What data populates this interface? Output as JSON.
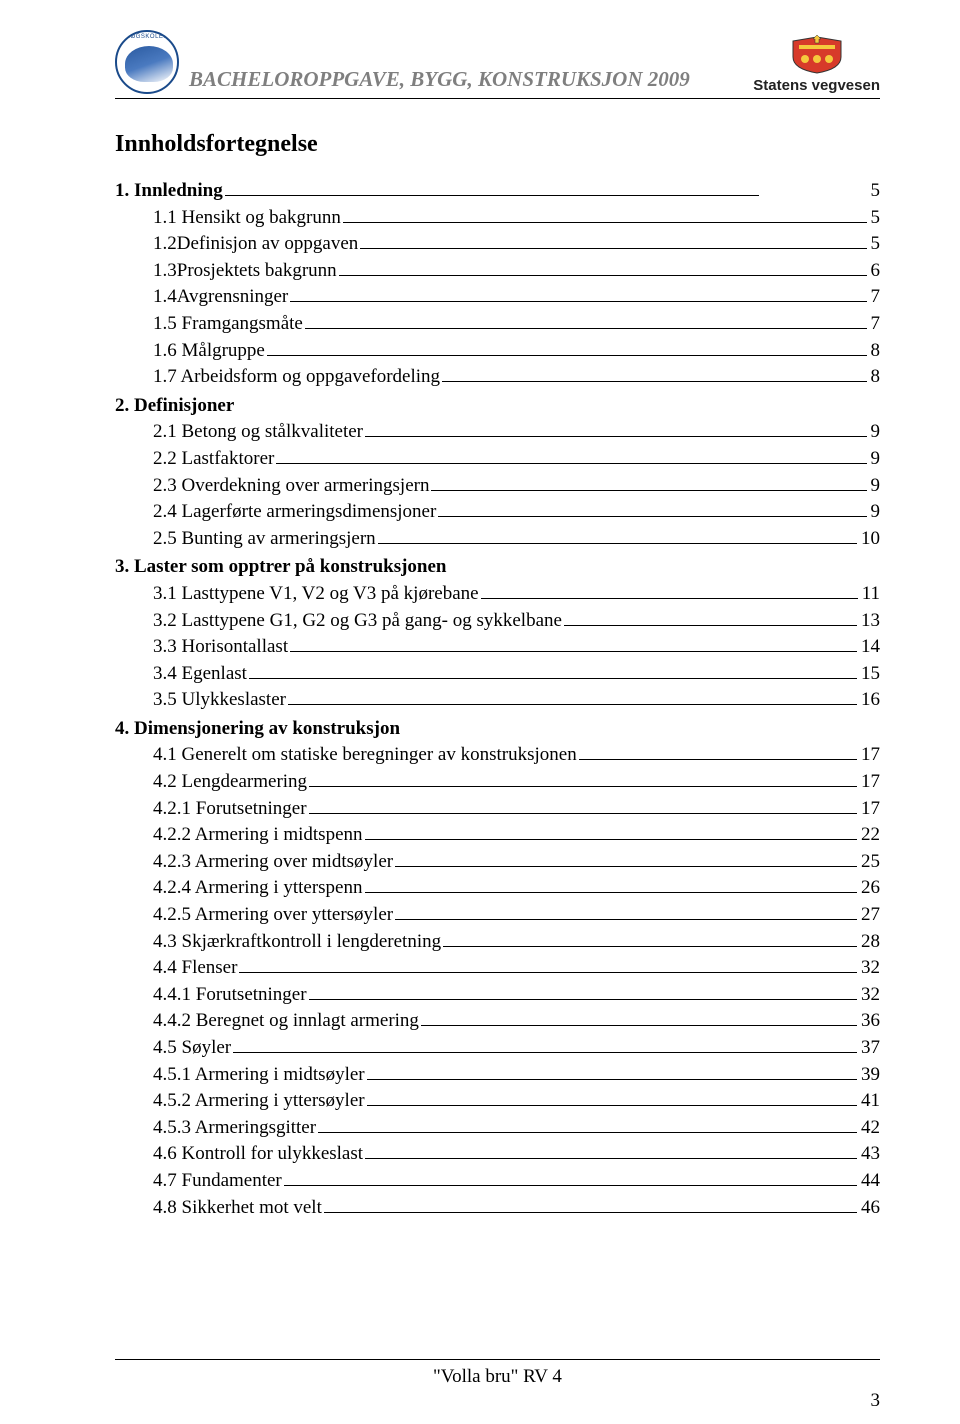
{
  "header": {
    "title": "BACHELOROPPGAVE, BYGG, KONSTRUKSJON 2009",
    "logo_right_text": "Statens vegvesen"
  },
  "toc_title": "Innholdsfortegnelse",
  "sections": [
    {
      "label": "1. Innledning",
      "page": "5",
      "items": [
        {
          "label": "1.1 Hensikt og bakgrunn",
          "page": "5"
        },
        {
          "label": "1.2Definisjon av oppgaven",
          "page": "5"
        },
        {
          "label": "1.3Prosjektets bakgrunn",
          "page": "6"
        },
        {
          "label": "1.4Avgrensninger",
          "page": "7"
        },
        {
          "label": "1.5 Framgangsmåte",
          "page": "7"
        },
        {
          "label": "1.6 Målgruppe",
          "page": "8"
        },
        {
          "label": "1.7 Arbeidsform og oppgavefordeling",
          "page": "8"
        }
      ]
    },
    {
      "label": "2. Definisjoner",
      "page": "",
      "items": [
        {
          "label": "2.1 Betong og stålkvaliteter",
          "page": "9"
        },
        {
          "label": "2.2 Lastfaktorer",
          "page": "9"
        },
        {
          "label": "2.3 Overdekning over armeringsjern ",
          "page": "9"
        },
        {
          "label": "2.4 Lagerførte armeringsdimensjoner",
          "page": "9"
        },
        {
          "label": "2.5 Bunting av armeringsjern",
          "page": "10"
        }
      ]
    },
    {
      "label": "3. Laster som opptrer på konstruksjonen",
      "page": "",
      "items": [
        {
          "label": "3.1 Lasttypene V1, V2 og V3 på kjørebane",
          "page": "11"
        },
        {
          "label": "3.2 Lasttypene G1, G2 og G3 på gang- og sykkelbane",
          "page": "13"
        },
        {
          "label": "3.3 Horisontallast",
          "page": "14"
        },
        {
          "label": "3.4 Egenlast",
          "page": "15"
        },
        {
          "label": "3.5 Ulykkeslaster",
          "page": "16"
        }
      ]
    },
    {
      "label": "4. Dimensjonering av konstruksjon",
      "page": "",
      "items": [
        {
          "label": "4.1 Generelt om statiske beregninger av konstruksjonen",
          "page": "17"
        },
        {
          "label": "4.2 Lengdearmering",
          "page": "17"
        },
        {
          "label": "4.2.1 Forutsetninger",
          "page": "17"
        },
        {
          "label": "4.2.2 Armering i midtspenn",
          "page": "22"
        },
        {
          "label": "4.2.3 Armering over midtsøyler",
          "page": "25"
        },
        {
          "label": "4.2.4 Armering i ytterspenn",
          "page": "26"
        },
        {
          "label": "4.2.5 Armering over yttersøyler ",
          "page": "27"
        },
        {
          "label": "4.3 Skjærkraftkontroll i lengderetning",
          "page": "28"
        },
        {
          "label": "4.4 Flenser",
          "page": "32"
        },
        {
          "label": "4.4.1 Forutsetninger",
          "page": "32"
        },
        {
          "label": "4.4.2 Beregnet og innlagt armering",
          "page": "36"
        },
        {
          "label": "4.5 Søyler",
          "page": "37"
        },
        {
          "label": "4.5.1 Armering i midtsøyler",
          "page": "39"
        },
        {
          "label": "4.5.2 Armering i yttersøyler",
          "page": "41"
        },
        {
          "label": "4.5.3 Armeringsgitter",
          "page": "42"
        },
        {
          "label": "4.6 Kontroll for ulykkeslast",
          "page": "43"
        },
        {
          "label": "4.7 Fundamenter",
          "page": "44"
        },
        {
          "label": "4.8 Sikkerhet mot velt ",
          "page": "46"
        }
      ]
    }
  ],
  "footer": {
    "text": "\"Volla bru\" RV 4",
    "page_number": "3"
  },
  "colors": {
    "text": "#000000",
    "header_gray": "#7f7f7f",
    "background": "#ffffff",
    "shield_red": "#d73a2a",
    "shield_yellow": "#f5c93d",
    "logo_blue": "#1a4a8a"
  },
  "typography": {
    "body_family": "Times New Roman",
    "body_size_pt": 14,
    "toc_title_size_pt": 18,
    "header_title_size_pt": 16
  }
}
